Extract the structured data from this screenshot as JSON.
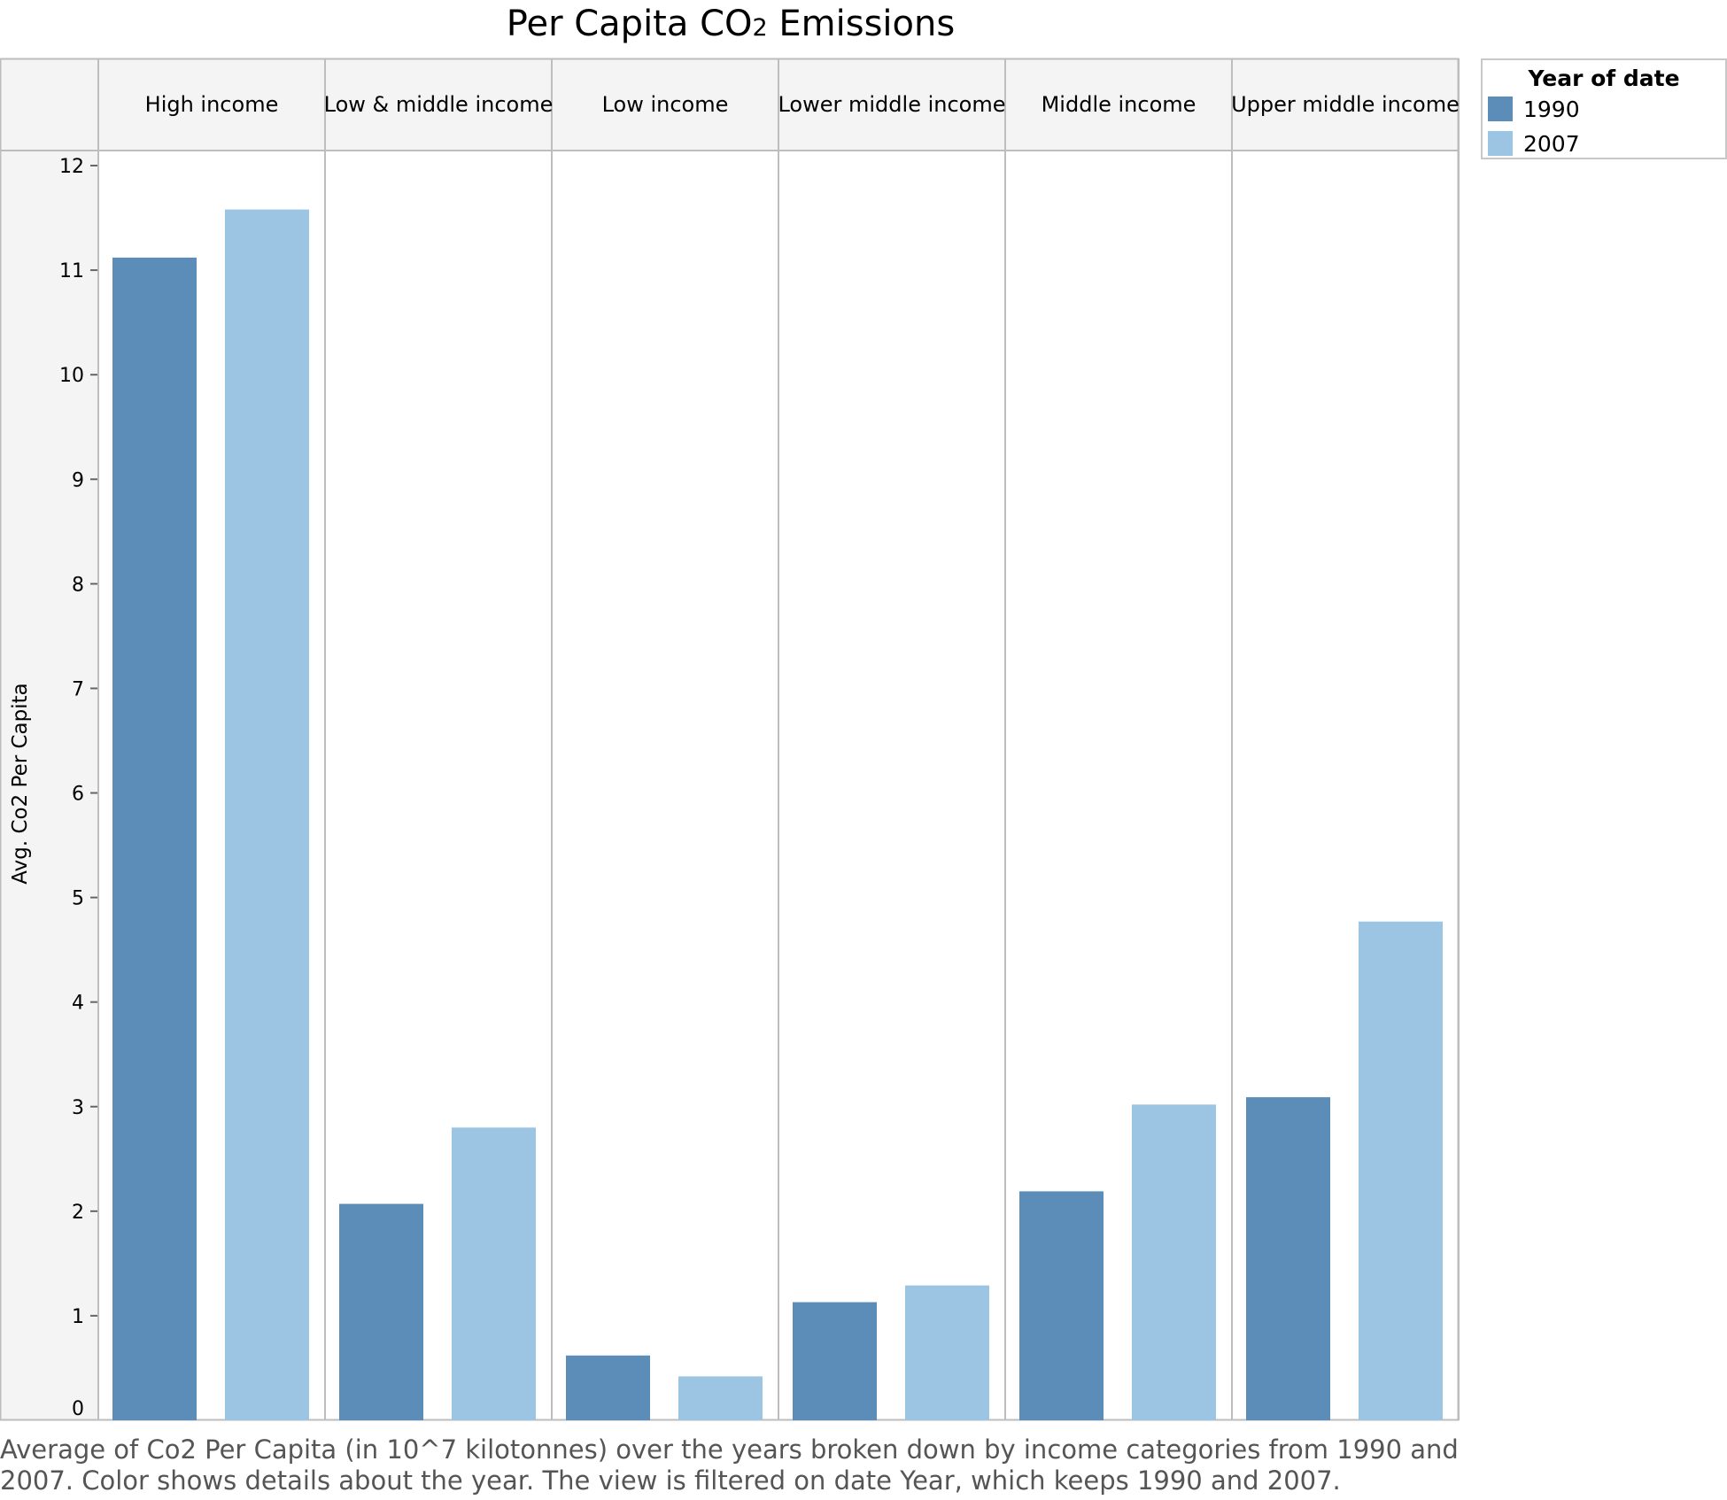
{
  "title_main": "Per Capita CO",
  "title_sub": "2",
  "title_tail": " Emissions",
  "chart_data": {
    "type": "bar",
    "title": "Per Capita CO2 Emissions",
    "ylabel": "Avg. Co2 Per Capita",
    "xlabel": "",
    "ylim": [
      0,
      12
    ],
    "yticks": [
      "0",
      "1",
      "2",
      "3",
      "4",
      "5",
      "6",
      "7",
      "8",
      "9",
      "10",
      "11",
      "12"
    ],
    "categories": [
      "High income",
      "Low & middle income",
      "Low income",
      "Lower middle income",
      "Middle income",
      "Upper middle income"
    ],
    "series": [
      {
        "name": "1990",
        "color": "#5b8db8",
        "values": [
          11.12,
          2.07,
          0.62,
          1.13,
          2.19,
          3.09
        ]
      },
      {
        "name": "2007",
        "color": "#9cc5e4",
        "values": [
          11.58,
          2.8,
          0.42,
          1.29,
          3.02,
          4.77
        ]
      }
    ],
    "legend": {
      "title": "Year of date",
      "placement": "top-right"
    },
    "grid": false
  },
  "caption": "Average of Co2 Per Capita (in 10^7 kilotonnes) over the years broken down by income categories from 1990 and 2007. Color shows details about the year. The view is filtered on date Year, which keeps 1990 and 2007."
}
